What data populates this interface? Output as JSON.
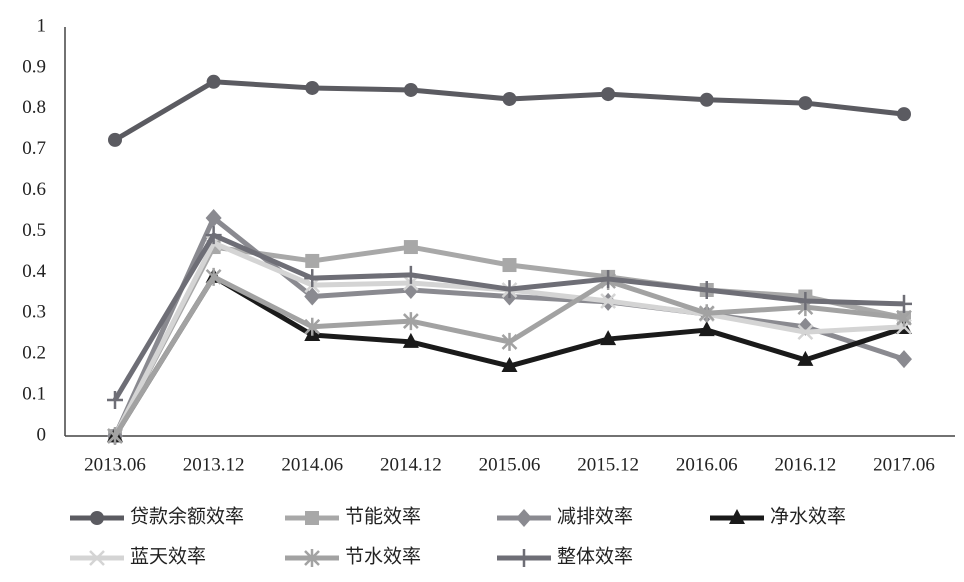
{
  "chart_data": {
    "type": "line",
    "categories": [
      "2013.06",
      "2013.12",
      "2014.06",
      "2014.12",
      "2015.06",
      "2015.12",
      "2016.06",
      "2016.12",
      "2017.06"
    ],
    "ylim": [
      0,
      1
    ],
    "yticks": [
      0,
      0.1,
      0.2,
      0.3,
      0.4,
      0.5,
      0.6,
      0.7,
      0.8,
      0.9,
      1
    ],
    "grid": false,
    "legend": "bottom",
    "series": [
      {
        "name": "贷款余额效率",
        "color": "#5b5b61",
        "marker": "circle",
        "values": [
          0.724,
          0.866,
          0.851,
          0.846,
          0.824,
          0.836,
          0.822,
          0.814,
          0.787
        ]
      },
      {
        "name": "节能效率",
        "color": "#a8a8a8",
        "marker": "square",
        "values": [
          0,
          0.462,
          0.428,
          0.462,
          0.418,
          0.389,
          0.357,
          0.341,
          0.289
        ]
      },
      {
        "name": "减排效率",
        "color": "#8a8a90",
        "marker": "diamond",
        "values": [
          0,
          0.533,
          0.341,
          0.357,
          0.341,
          0.328,
          0.298,
          0.267,
          0.188
        ]
      },
      {
        "name": "净水效率",
        "color": "#1a1a1a",
        "marker": "triangle",
        "values": [
          0,
          0.389,
          0.247,
          0.23,
          0.171,
          0.237,
          0.259,
          0.186,
          0.264
        ]
      },
      {
        "name": "蓝天效率",
        "color": "#d4d4d4",
        "marker": "x",
        "values": [
          0,
          0.472,
          0.369,
          0.374,
          0.357,
          0.33,
          0.298,
          0.254,
          0.267
        ]
      },
      {
        "name": "节水效率",
        "color": "#a2a2a2",
        "marker": "star",
        "values": [
          0,
          0.389,
          0.267,
          0.281,
          0.23,
          0.379,
          0.3,
          0.315,
          0.289
        ]
      },
      {
        "name": "整体效率",
        "color": "#6e6e76",
        "marker": "plus",
        "values": [
          0.088,
          0.491,
          0.386,
          0.394,
          0.359,
          0.384,
          0.357,
          0.33,
          0.323
        ]
      }
    ]
  }
}
